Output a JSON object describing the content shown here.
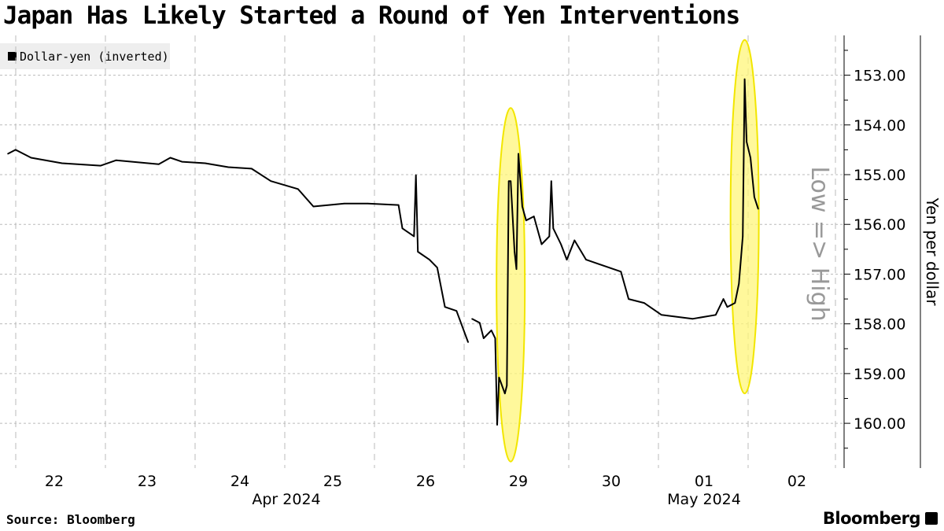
{
  "chart_data": {
    "type": "line",
    "title": "Japan Has Likely Started a Round of Yen Interventions",
    "legend": [
      "Dollar-yen (inverted)"
    ],
    "legend_position": "top-left",
    "ylabel": "Yen per dollar",
    "y_annotation": "Low => High",
    "y_inverted": true,
    "ylim": [
      152.2,
      160.9
    ],
    "yticks": [
      "153.00",
      "154.00",
      "155.00",
      "156.00",
      "157.00",
      "158.00",
      "159.00",
      "160.00"
    ],
    "xticks": [
      "22",
      "23",
      "24",
      "25",
      "26",
      "29",
      "30",
      "01",
      "02"
    ],
    "xgroups": [
      "Apr 2024",
      "May 2024"
    ],
    "grid": true,
    "line_color": "#000000",
    "highlight_color": "#fff67a",
    "highlights": [
      {
        "x": "2024-04-29T10:00",
        "y": [
          153.66,
          160.77
        ]
      },
      {
        "x": "2024-05-01T22:30",
        "y": [
          152.29,
          159.4
        ]
      }
    ],
    "series": [
      {
        "name": "Dollar-yen (inverted)",
        "points": [
          [
            "2024-04-22T00:00",
            154.58
          ],
          [
            "2024-04-22T02:00",
            154.5
          ],
          [
            "2024-04-22T06:00",
            154.66
          ],
          [
            "2024-04-22T14:00",
            154.77
          ],
          [
            "2024-04-23T00:00",
            154.82
          ],
          [
            "2024-04-23T04:00",
            154.71
          ],
          [
            "2024-04-23T15:00",
            154.79
          ],
          [
            "2024-04-23T18:00",
            154.66
          ],
          [
            "2024-04-23T21:00",
            154.74
          ],
          [
            "2024-04-24T03:00",
            154.77
          ],
          [
            "2024-04-24T09:00",
            154.85
          ],
          [
            "2024-04-24T15:00",
            154.88
          ],
          [
            "2024-04-24T20:00",
            155.13
          ],
          [
            "2024-04-25T03:00",
            155.29
          ],
          [
            "2024-04-25T07:00",
            155.64
          ],
          [
            "2024-04-25T15:00",
            155.58
          ],
          [
            "2024-04-25T21:00",
            155.58
          ],
          [
            "2024-04-26T05:00",
            155.61
          ],
          [
            "2024-04-26T06:00",
            156.08
          ],
          [
            "2024-04-26T09:00",
            156.24
          ],
          [
            "2024-04-26T09:30",
            155.01
          ],
          [
            "2024-04-26T10:00",
            156.55
          ],
          [
            "2024-04-26T13:00",
            156.71
          ],
          [
            "2024-04-26T15:00",
            156.87
          ],
          [
            "2024-04-26T17:00",
            157.66
          ],
          [
            "2024-04-26T20:00",
            157.74
          ],
          [
            "2024-04-26T23:00",
            158.37
          ],
          null,
          [
            "2024-04-29T00:00",
            157.9
          ],
          [
            "2024-04-29T02:00",
            157.98
          ],
          [
            "2024-04-29T03:00",
            158.29
          ],
          [
            "2024-04-29T05:00",
            158.13
          ],
          [
            "2024-04-29T06:00",
            158.29
          ],
          [
            "2024-04-29T06:30",
            160.03
          ],
          [
            "2024-04-29T07:00",
            159.08
          ],
          [
            "2024-04-29T08:30",
            159.4
          ],
          [
            "2024-04-29T09:00",
            159.24
          ],
          [
            "2024-04-29T09:30",
            155.13
          ],
          [
            "2024-04-29T10:00",
            155.13
          ],
          [
            "2024-04-29T11:00",
            156.55
          ],
          [
            "2024-04-29T11:30",
            156.9
          ],
          [
            "2024-04-29T12:00",
            154.58
          ],
          [
            "2024-04-29T13:00",
            155.64
          ],
          [
            "2024-04-29T14:00",
            155.92
          ],
          [
            "2024-04-29T16:00",
            155.84
          ],
          [
            "2024-04-29T18:00",
            156.4
          ],
          [
            "2024-04-29T20:00",
            156.24
          ],
          [
            "2024-04-29T20:30",
            155.13
          ],
          [
            "2024-04-29T21:00",
            156.08
          ],
          [
            "2024-04-29T23:00",
            156.4
          ],
          [
            "2024-04-30T00:30",
            156.71
          ],
          [
            "2024-04-30T02:30",
            156.32
          ],
          [
            "2024-04-30T05:30",
            156.71
          ],
          [
            "2024-04-30T08:30",
            156.79
          ],
          [
            "2024-04-30T14:30",
            156.95
          ],
          [
            "2024-04-30T16:30",
            157.5
          ],
          [
            "2024-04-30T20:30",
            157.58
          ],
          [
            "2024-05-01T01:00",
            157.82
          ],
          [
            "2024-05-01T09:00",
            157.9
          ],
          [
            "2024-05-01T15:00",
            157.82
          ],
          [
            "2024-05-01T17:00",
            157.5
          ],
          [
            "2024-05-01T18:00",
            157.66
          ],
          [
            "2024-05-01T20:00",
            157.58
          ],
          [
            "2024-05-01T21:00",
            157.19
          ],
          [
            "2024-05-01T22:00",
            156.24
          ],
          [
            "2024-05-01T22:30",
            153.08
          ],
          [
            "2024-05-01T23:00",
            154.34
          ],
          [
            "2024-05-02T00:00",
            154.66
          ],
          [
            "2024-05-02T01:00",
            155.45
          ],
          [
            "2024-05-02T02:00",
            155.69
          ]
        ]
      }
    ]
  },
  "source": "Source: Bloomberg",
  "brand": "Bloomberg"
}
